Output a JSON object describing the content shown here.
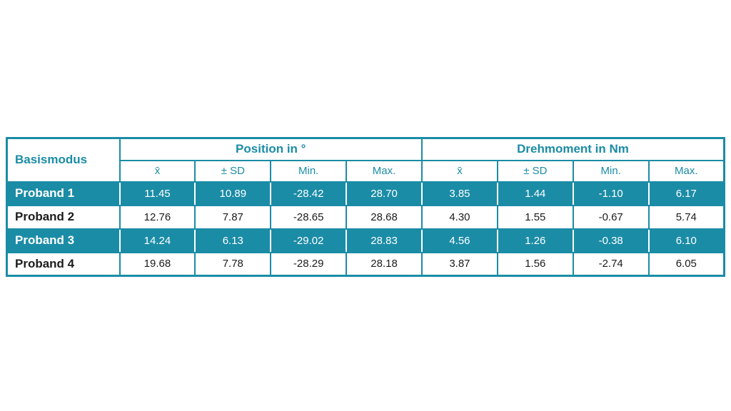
{
  "colors": {
    "accent": "#1b8ca6",
    "row_highlight": "#1b8ca6",
    "text_dark": "#1c1c1c",
    "text_on_highlight": "#ffffff",
    "background": "#ffffff"
  },
  "chart_data": {
    "type": "table",
    "corner_header": "Basismodus",
    "column_groups": [
      {
        "label": "Position in °",
        "subcolumns": [
          "x̄",
          "± SD",
          "Min.",
          "Max."
        ]
      },
      {
        "label": "Drehmoment in Nm",
        "subcolumns": [
          "x̄",
          "± SD",
          "Min.",
          "Max."
        ]
      }
    ],
    "rows": [
      {
        "label": "Proband 1",
        "highlighted": true,
        "values": [
          "11.45",
          "10.89",
          "-28.42",
          "28.70",
          "3.85",
          "1.44",
          "-1.10",
          "6.17"
        ]
      },
      {
        "label": "Proband 2",
        "highlighted": false,
        "values": [
          "12.76",
          "7.87",
          "-28.65",
          "28.68",
          "4.30",
          "1.55",
          "-0.67",
          "5.74"
        ]
      },
      {
        "label": "Proband 3",
        "highlighted": true,
        "values": [
          "14.24",
          "6.13",
          "-29.02",
          "28.83",
          "4.56",
          "1.26",
          "-0.38",
          "6.10"
        ]
      },
      {
        "label": "Proband 4",
        "highlighted": false,
        "values": [
          "19.68",
          "7.78",
          "-28.29",
          "28.18",
          "3.87",
          "1.56",
          "-2.74",
          "6.05"
        ]
      }
    ]
  }
}
